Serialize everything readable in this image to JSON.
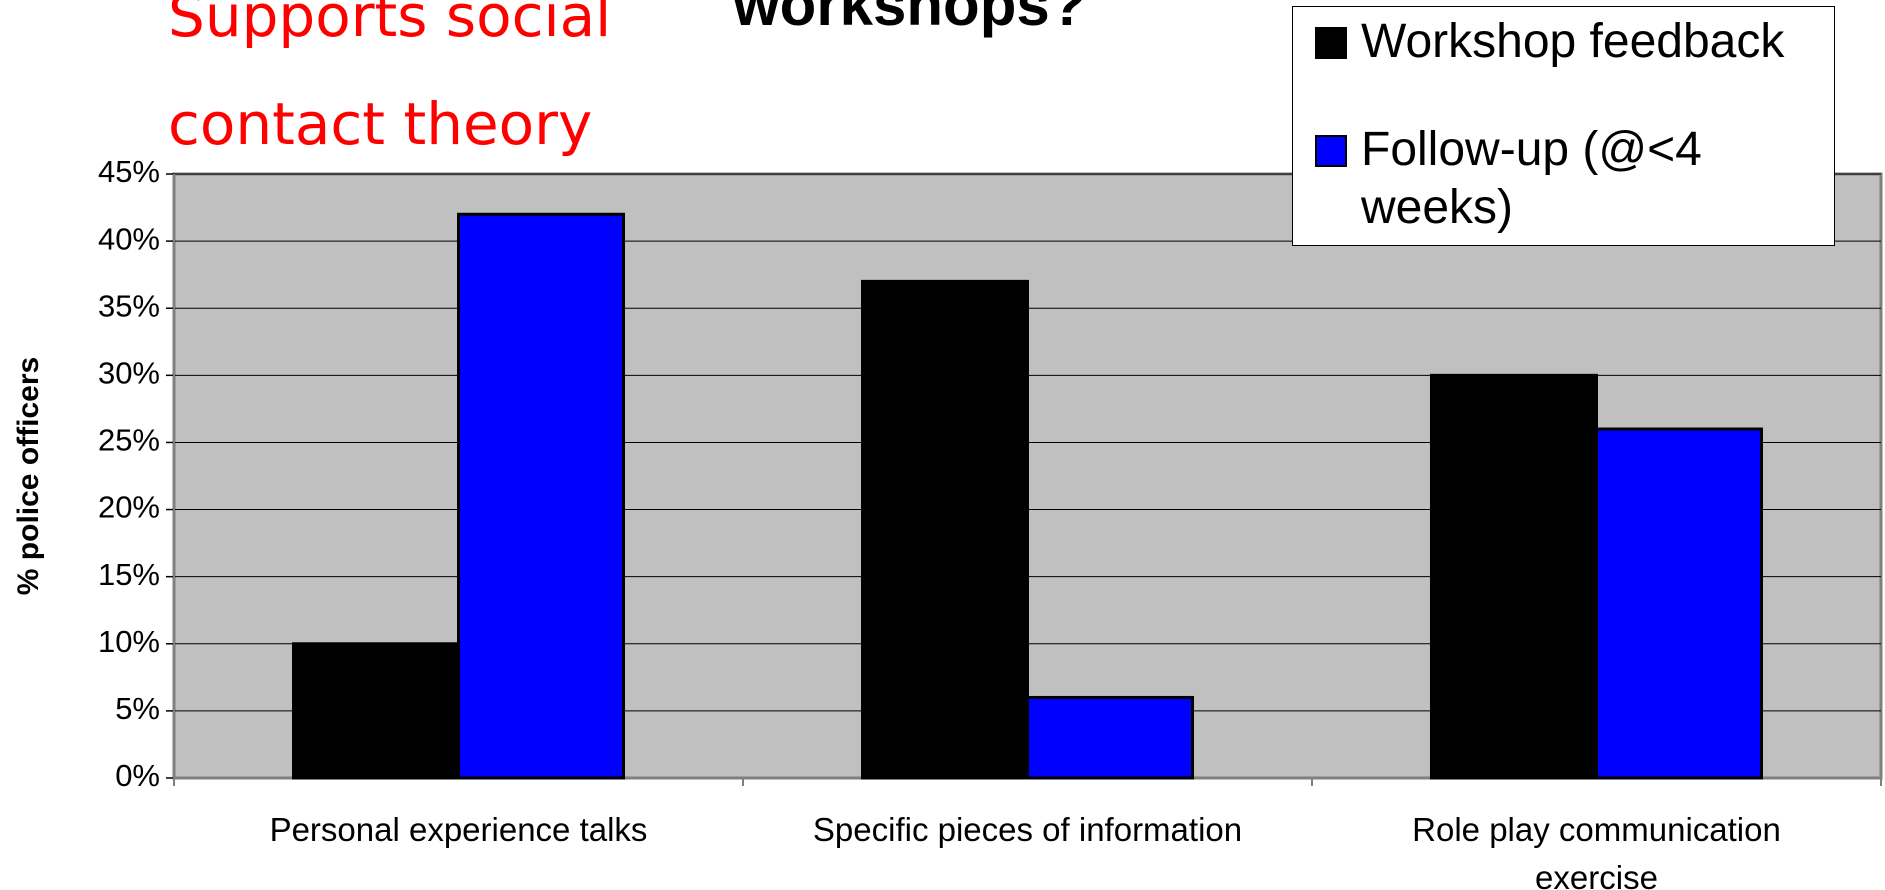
{
  "chart_data": {
    "type": "bar",
    "title": "workshops?",
    "annotation": "Supports social contact theory",
    "y_label": "% police officers",
    "categories": [
      "Personal experience talks",
      "Specific pieces of information",
      "Role play communication exercise"
    ],
    "series": [
      {
        "name": "Workshop feedback",
        "color": "#000000",
        "values": [
          10,
          37,
          30
        ]
      },
      {
        "name": "Follow-up (@<4 weeks)",
        "color": "#0000ff",
        "values": [
          42,
          6,
          26
        ]
      }
    ],
    "ylim": [
      0,
      45
    ],
    "yticks": [
      {
        "value": 0,
        "label": "0%"
      },
      {
        "value": 5,
        "label": "5%"
      },
      {
        "value": 10,
        "label": "10%"
      },
      {
        "value": 15,
        "label": "15%"
      },
      {
        "value": 20,
        "label": "20%"
      },
      {
        "value": 25,
        "label": "25%"
      },
      {
        "value": 30,
        "label": "30%"
      },
      {
        "value": 35,
        "label": "35%"
      },
      {
        "value": 40,
        "label": "40%"
      },
      {
        "value": 45,
        "label": "45%"
      }
    ],
    "grid": true,
    "legend": "top-right"
  }
}
